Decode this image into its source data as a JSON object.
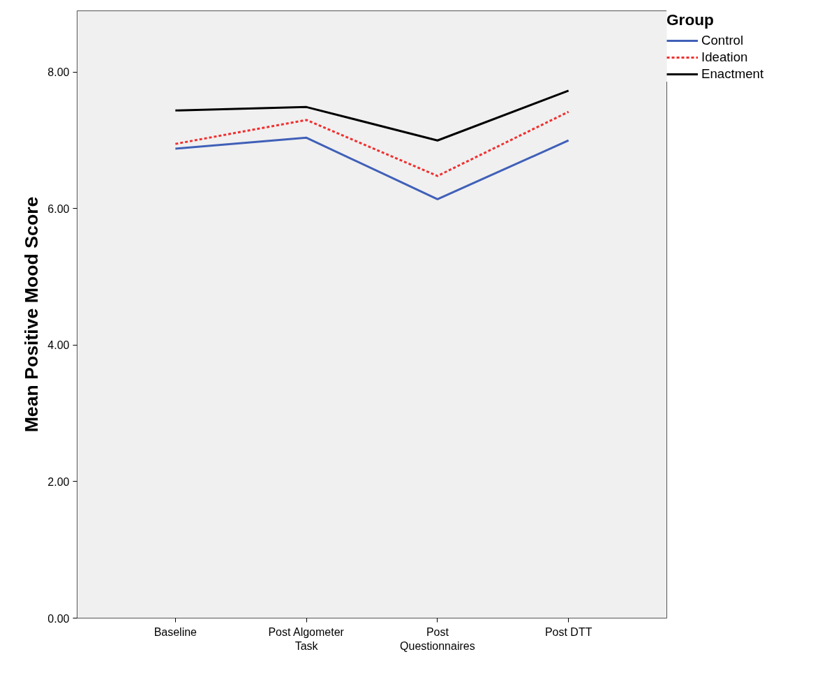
{
  "chart_data": {
    "type": "line",
    "ylabel": "Mean Positive Mood Score",
    "legend_title": "Group",
    "categories": [
      "Baseline",
      "Post Algometer Task",
      "Post Questionnaires",
      "Post DTT"
    ],
    "series": [
      {
        "name": "Control",
        "color": "#4060b8",
        "line_style": "solid",
        "values": [
          6.88,
          7.04,
          6.14,
          7.0
        ]
      },
      {
        "name": "Ideation",
        "color": "#f03030",
        "line_style": "dotted",
        "values": [
          6.95,
          7.3,
          6.48,
          7.42
        ]
      },
      {
        "name": "Enactment",
        "color": "#000000",
        "line_style": "solid",
        "values": [
          7.44,
          7.49,
          7.0,
          7.73
        ]
      }
    ],
    "ylim": [
      0,
      8.9
    ],
    "yticks": [
      {
        "value": 0,
        "label": "0.00"
      },
      {
        "value": 2,
        "label": "2.00"
      },
      {
        "value": 4,
        "label": "4.00"
      },
      {
        "value": 6,
        "label": "6.00"
      },
      {
        "value": 8,
        "label": "8.00"
      }
    ],
    "grid": false,
    "legend": "right",
    "marker": "none"
  }
}
